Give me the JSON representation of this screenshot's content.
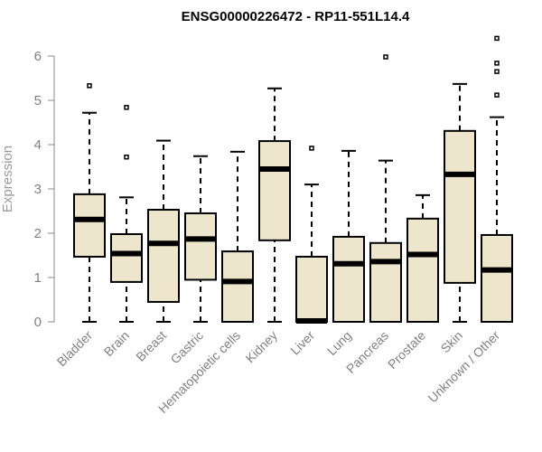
{
  "chart_data": {
    "type": "box",
    "title": "ENSG00000226472 - RP11-551L14.4",
    "xlabel": "",
    "ylabel": "Expression",
    "ylim": [
      0,
      6.5
    ],
    "yticks": [
      0,
      1,
      2,
      3,
      4,
      5,
      6
    ],
    "grid": false,
    "box_color": "#ede6cc",
    "categories": [
      "Bladder",
      "Brain",
      "Breast",
      "Gastric",
      "Hematopoietic cells",
      "Kidney",
      "Liver",
      "Lung",
      "Pancreas",
      "Prostate",
      "Skin",
      "Unknown / Other"
    ],
    "boxes": [
      {
        "min": 0,
        "q1": 1.47,
        "median": 2.31,
        "q3": 2.88,
        "max": 4.72,
        "outliers": [
          5.33
        ]
      },
      {
        "min": 0,
        "q1": 0.9,
        "median": 1.54,
        "q3": 1.98,
        "max": 2.81,
        "outliers": [
          3.72,
          4.84
        ]
      },
      {
        "min": 0,
        "q1": 0.45,
        "median": 1.77,
        "q3": 2.53,
        "max": 4.09,
        "outliers": []
      },
      {
        "min": 0,
        "q1": 0.95,
        "median": 1.87,
        "q3": 2.45,
        "max": 3.74,
        "outliers": []
      },
      {
        "min": 0,
        "q1": 0,
        "median": 0.91,
        "q3": 1.59,
        "max": 3.84,
        "outliers": []
      },
      {
        "min": 0,
        "q1": 1.84,
        "median": 3.45,
        "q3": 4.08,
        "max": 5.27,
        "outliers": []
      },
      {
        "min": 0,
        "q1": 0,
        "median": 0.02,
        "q3": 1.47,
        "max": 3.1,
        "outliers": [
          3.92
        ]
      },
      {
        "min": 0,
        "q1": 0,
        "median": 1.31,
        "q3": 1.92,
        "max": 3.86,
        "outliers": []
      },
      {
        "min": 0,
        "q1": 0,
        "median": 1.36,
        "q3": 1.78,
        "max": 3.64,
        "outliers": [
          5.98
        ]
      },
      {
        "min": 0,
        "q1": 0,
        "median": 1.52,
        "q3": 2.33,
        "max": 2.86,
        "outliers": []
      },
      {
        "min": 0,
        "q1": 0.88,
        "median": 3.33,
        "q3": 4.31,
        "max": 5.37,
        "outliers": []
      },
      {
        "min": 0,
        "q1": 0,
        "median": 1.17,
        "q3": 1.96,
        "max": 4.62,
        "outliers": [
          5.12,
          5.65,
          5.84,
          6.4
        ]
      }
    ]
  }
}
